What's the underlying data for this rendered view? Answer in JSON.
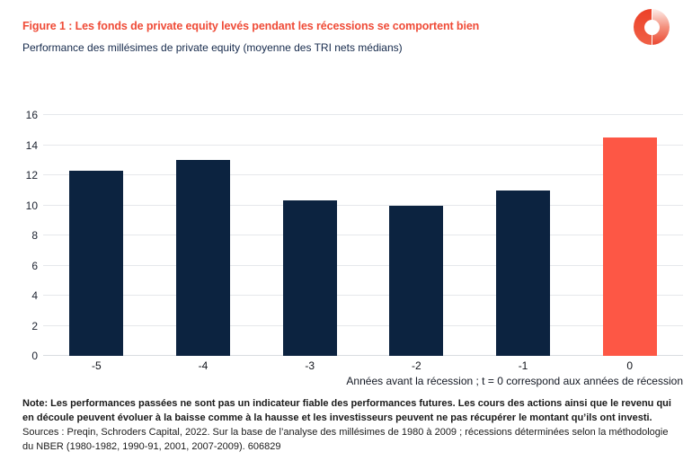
{
  "header": {
    "figure_title": "Figure 1 : Les fonds de private equity levés pendant les récessions se comportent bien",
    "subtitle": "Performance des millésimes de private equity (moyenne des TRI nets médians)"
  },
  "icons": {
    "brand_logo": "schroders-ring-logo"
  },
  "chart_data": {
    "type": "bar",
    "title": "Performance des millésimes de private equity (moyenne des TRI nets médians)",
    "categories": [
      "-5",
      "-4",
      "-3",
      "-2",
      "-1",
      "0"
    ],
    "values": [
      12.3,
      13.0,
      10.3,
      10.0,
      11.0,
      14.5
    ],
    "xlabel": "Années avant la récession ; t = 0 correspond aux années de récession",
    "ylabel": "",
    "ylim": [
      0,
      16
    ],
    "yticks": [
      0,
      2,
      4,
      6,
      8,
      10,
      12,
      14,
      16
    ],
    "grid": true,
    "legend": "none",
    "bar_color": "#0c2340",
    "highlight_color": "#fd5745",
    "highlight_index": 5
  },
  "footnote": {
    "line1": "Note: Les performances passées ne sont pas un indicateur fiable des performances futures. Les cours des actions ainsi que le revenu qui",
    "line2": "en découle peuvent évoluer à la baisse comme à la hausse et les investisseurs peuvent ne pas récupérer le montant qu’ils ont investi.",
    "line3": "Sources : Preqin, Schroders Capital, 2022. Sur la base de l’analyse des millésimes de 1980 à 2009 ; récessions déterminées selon la méthodologie",
    "line4": "du NBER (1980-1982, 1990-91, 2001, 2007-2009). 606829"
  },
  "colors": {
    "title_accent": "#ef4b37",
    "navy": "#0c2340",
    "bar_highlight": "#fd5745",
    "gridline": "#e6e8eb"
  }
}
